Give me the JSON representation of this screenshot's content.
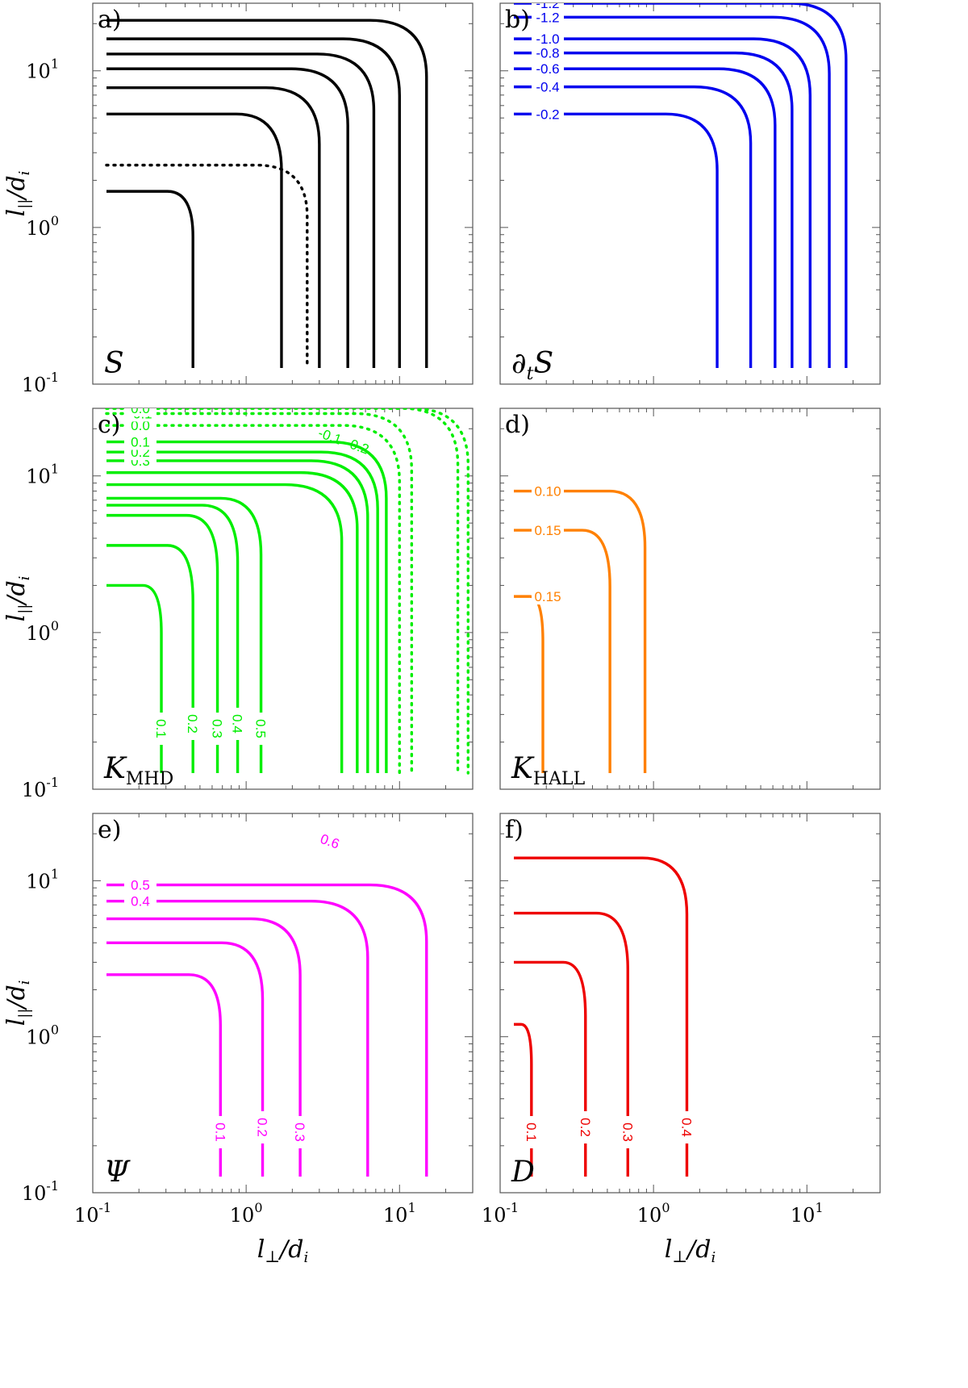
{
  "chart_data": [
    {
      "type": "contour",
      "panel": "a)",
      "symbol": "S",
      "color": "#000000",
      "xlim": [
        0.1,
        30
      ],
      "ylim": [
        0.1,
        27
      ],
      "contours": [
        {
          "x_edge": 0.45,
          "y_top": 1.7,
          "style": "solid"
        },
        {
          "x_edge": 1.7,
          "y_top": 5.3,
          "style": "solid"
        },
        {
          "x_edge": 2.5,
          "y_top": 2.5,
          "style": "dotted"
        },
        {
          "x_edge": 3.0,
          "y_top": 7.8,
          "style": "solid"
        },
        {
          "x_edge": 4.6,
          "y_top": 10.3,
          "style": "solid"
        },
        {
          "x_edge": 6.8,
          "y_top": 12.8,
          "style": "solid"
        },
        {
          "x_edge": 10.0,
          "y_top": 16.0,
          "style": "solid"
        },
        {
          "x_edge": 15.0,
          "y_top": 21.0,
          "style": "solid"
        }
      ]
    },
    {
      "type": "contour",
      "panel": "b)",
      "symbol": "∂",
      "symbol_rest": "S",
      "symbol_sub": "t",
      "color": "#0000ee",
      "xlim": [
        0.1,
        30
      ],
      "ylim": [
        0.1,
        27
      ],
      "contours": [
        {
          "x_edge": 2.6,
          "y_top": 5.3,
          "label": "-0.2"
        },
        {
          "x_edge": 4.3,
          "y_top": 7.9,
          "label": "-0.4"
        },
        {
          "x_edge": 6.2,
          "y_top": 10.3,
          "label": "-0.6"
        },
        {
          "x_edge": 8.0,
          "y_top": 13.0,
          "label": "-0.8"
        },
        {
          "x_edge": 10.5,
          "y_top": 16.0,
          "label": "-1.0"
        },
        {
          "x_edge": 14.0,
          "y_top": 22.0,
          "label": "-1.2"
        },
        {
          "x_edge": 18.0,
          "y_top": 27.0,
          "label": "-1.2"
        }
      ]
    },
    {
      "type": "contour",
      "panel": "c)",
      "symbol": "K",
      "symbol_sub": "MHD",
      "color": "#00ee00",
      "xlim": [
        0.1,
        30
      ],
      "ylim": [
        0.1,
        27
      ],
      "contours": [
        {
          "x_edge": 0.28,
          "y_top": 2.0,
          "label": "0.1"
        },
        {
          "x_edge": 0.45,
          "y_top": 3.6,
          "label": "0.2"
        },
        {
          "x_edge": 0.65,
          "y_top": 5.6,
          "label": "0.3"
        },
        {
          "x_edge": 0.88,
          "y_top": 6.5,
          "label": "0.4"
        },
        {
          "x_edge": 1.25,
          "y_top": 7.2,
          "label": "0.5"
        },
        {
          "x_edge": 4.2,
          "y_top": 8.8,
          "label": ""
        },
        {
          "x_edge": 5.3,
          "y_top": 10.5,
          "label": ""
        },
        {
          "x_edge": 6.2,
          "y_top": 12.5,
          "label": "0.3"
        },
        {
          "x_edge": 7.2,
          "y_top": 14.2,
          "label": "0.2"
        },
        {
          "x_edge": 8.2,
          "y_top": 16.5,
          "label": "0.1"
        },
        {
          "x_edge": 10.0,
          "y_top": 21.0,
          "label": "0.0",
          "style": "dotted"
        },
        {
          "x_edge": 12.0,
          "y_top": 25.0,
          "label": "-0.1",
          "style": "dotted"
        },
        {
          "x_edge": 24.0,
          "y_top": 27.0,
          "label": "-0.1",
          "style": "dotted"
        },
        {
          "x_edge": 28.0,
          "y_top": 27.0,
          "label": "0.0",
          "style": "dotted"
        }
      ],
      "annotations": [
        "-0.1",
        "-0.2"
      ]
    },
    {
      "type": "contour",
      "panel": "d)",
      "symbol": "K",
      "symbol_sub": "HALL",
      "color": "#ff8000",
      "xlim": [
        0.1,
        30
      ],
      "ylim": [
        0.1,
        27
      ],
      "contours": [
        {
          "x_edge": 0.19,
          "y_top": 1.7,
          "label": "0.15"
        },
        {
          "x_edge": 0.52,
          "y_top": 4.5,
          "label": "0.15"
        },
        {
          "x_edge": 0.88,
          "y_top": 8.0,
          "label": "0.10"
        }
      ]
    },
    {
      "type": "contour",
      "panel": "e)",
      "symbol": "Ψ",
      "color": "#ff00ff",
      "xlim": [
        0.1,
        30
      ],
      "ylim": [
        0.1,
        27
      ],
      "contours": [
        {
          "x_edge": 0.68,
          "y_top": 2.5,
          "label": "0.1"
        },
        {
          "x_edge": 1.28,
          "y_top": 4.0,
          "label": "0.2"
        },
        {
          "x_edge": 2.25,
          "y_top": 5.7,
          "label": "0.3"
        },
        {
          "x_edge": 6.2,
          "y_top": 7.4,
          "label": "0.4"
        },
        {
          "x_edge": 15.0,
          "y_top": 9.4,
          "label": "0.5"
        }
      ],
      "annotations": [
        "0.6"
      ]
    },
    {
      "type": "contour",
      "panel": "f)",
      "symbol": "D",
      "color": "#ee0000",
      "xlim": [
        0.1,
        30
      ],
      "ylim": [
        0.1,
        27
      ],
      "contours": [
        {
          "x_edge": 0.16,
          "y_top": 1.2,
          "label": "0.1"
        },
        {
          "x_edge": 0.36,
          "y_top": 3.0,
          "label": "0.2"
        },
        {
          "x_edge": 0.68,
          "y_top": 6.2,
          "label": "0.3"
        },
        {
          "x_edge": 1.65,
          "y_top": 14.0,
          "label": "0.4"
        }
      ]
    }
  ],
  "axes": {
    "ylabel": "l||/di",
    "xlabel": "l⊥/di",
    "ylabel_main": "l",
    "ylabel_sub": "||",
    "ylabel_den": "/d",
    "ylabel_den_sub": "i",
    "xlabel_main": "l",
    "xlabel_sub": "⊥",
    "xlabel_den": "/d",
    "xlabel_den_sub": "i",
    "ticks": [
      {
        "base": "10",
        "exp": "-1"
      },
      {
        "base": "10",
        "exp": "0"
      },
      {
        "base": "10",
        "exp": "1"
      }
    ]
  }
}
